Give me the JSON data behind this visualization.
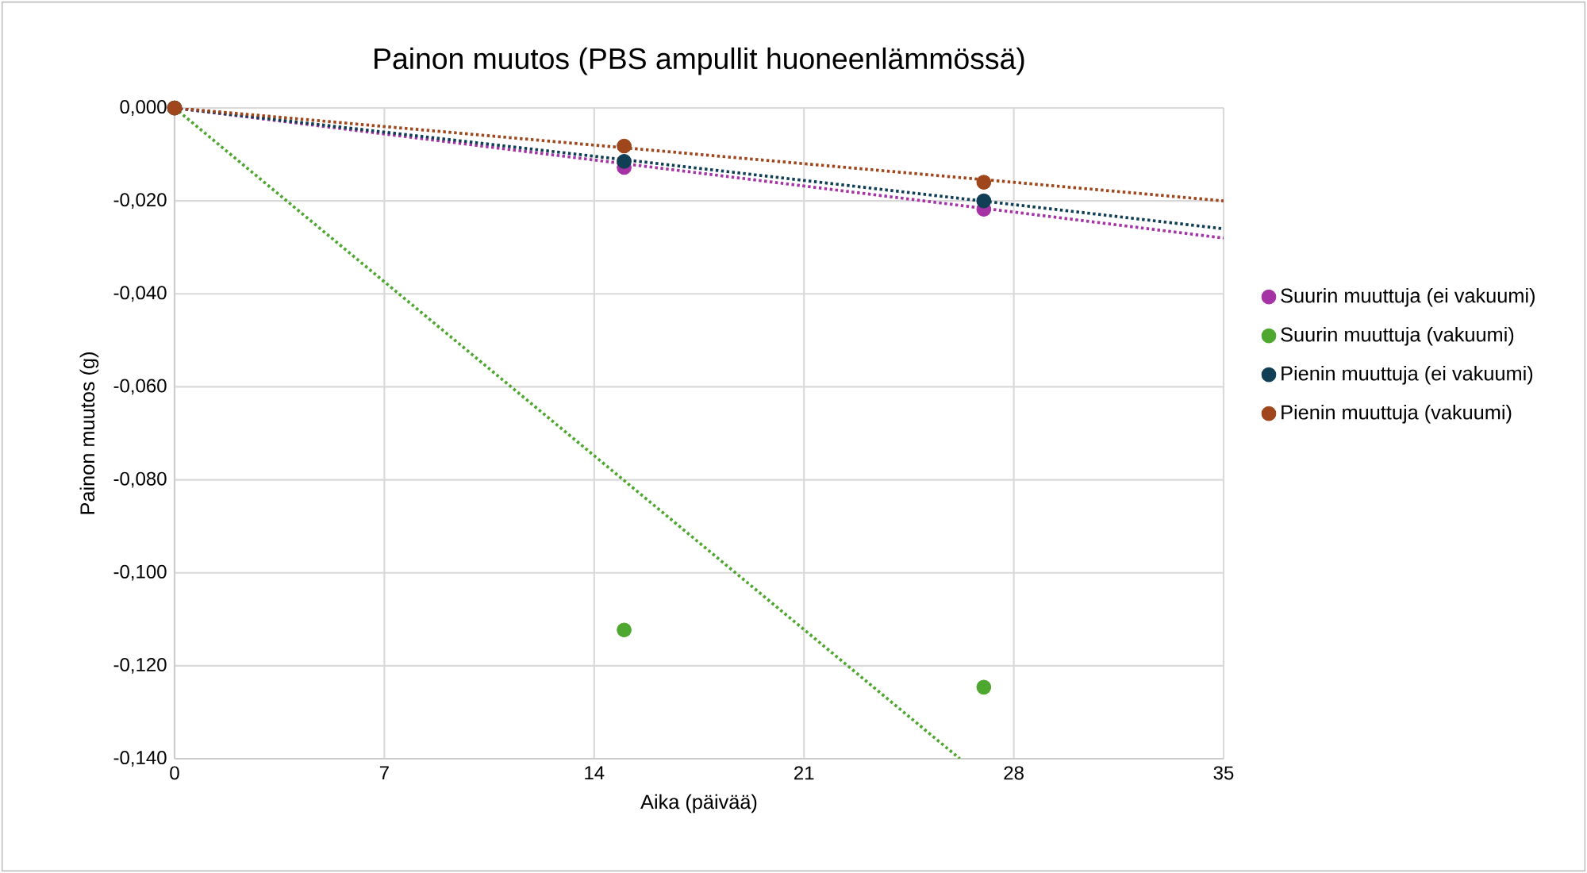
{
  "chart_data": {
    "type": "scatter",
    "title": "Painon muutos (PBS ampullit huoneenlämmössä)",
    "xlabel": "Aika (päivää)",
    "ylabel": "Painon muutos (g)",
    "x": [
      0,
      15,
      27
    ],
    "series": [
      {
        "name": "Suurin muuttuja (ei vakuumi)",
        "color": "#a633a6",
        "values": [
          0,
          -0.0128,
          -0.0218
        ],
        "marker": "circle"
      },
      {
        "name": "Suurin muuttuja (vakuumi)",
        "color": "#4ea72e",
        "values": [
          0,
          -0.1123,
          -0.1246
        ],
        "marker": "circle"
      },
      {
        "name": "Pienin muuttuja (ei vakuumi)",
        "color": "#0f3e55",
        "values": [
          0,
          -0.0115,
          -0.02
        ],
        "marker": "circle"
      },
      {
        "name": "Pienin muuttuja (vakuumi)",
        "color": "#a0461c",
        "values": [
          0,
          -0.0082,
          -0.016
        ],
        "marker": "circle"
      },
      {
        "type": "line",
        "color": "#a633a6",
        "x": [
          0,
          35
        ],
        "values": [
          0,
          -0.028
        ],
        "line_style": "dotted",
        "marker": "none"
      },
      {
        "type": "line",
        "color": "#4ea72e",
        "x": [
          0,
          26.2
        ],
        "values": [
          0,
          -0.14
        ],
        "line_style": "dotted",
        "marker": "none"
      },
      {
        "type": "line",
        "color": "#0f3e55",
        "x": [
          0,
          35
        ],
        "values": [
          0,
          -0.026
        ],
        "line_style": "dotted",
        "marker": "none"
      },
      {
        "type": "line",
        "color": "#a0461c",
        "x": [
          0,
          35
        ],
        "values": [
          0,
          -0.02
        ],
        "line_style": "dotted",
        "marker": "none"
      }
    ],
    "xlim": [
      0,
      35
    ],
    "xticks": [
      0,
      7,
      14,
      21,
      28,
      35
    ],
    "ylim": [
      -0.14,
      0
    ],
    "yticks": [
      {
        "value": -0.14,
        "label": "-0,140"
      },
      {
        "value": -0.12,
        "label": "-0,120"
      },
      {
        "value": -0.1,
        "label": "-0,100"
      },
      {
        "value": -0.08,
        "label": "-0,080"
      },
      {
        "value": -0.06,
        "label": "-0,060"
      },
      {
        "value": -0.04,
        "label": "-0,040"
      },
      {
        "value": -0.02,
        "label": "-0,020"
      },
      {
        "value": 0,
        "label": "0,000"
      }
    ],
    "grid": true,
    "legend": "right"
  }
}
